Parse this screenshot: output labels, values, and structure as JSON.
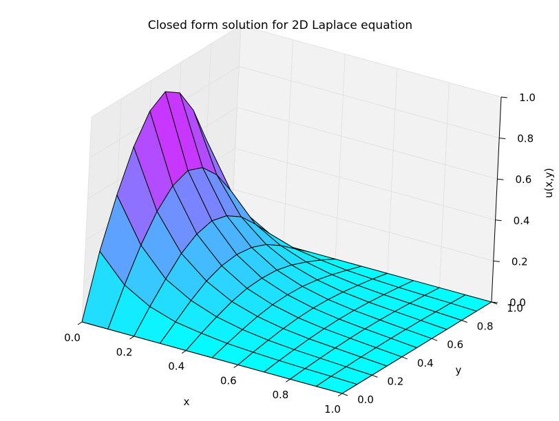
{
  "chart_data": {
    "type": "surface",
    "title": "Closed form solution for 2D Laplace equation",
    "xlabel": "x",
    "ylabel": "y",
    "zlabel": "u(x,y)",
    "xlim": [
      0.0,
      1.0
    ],
    "ylim": [
      0.0,
      1.0
    ],
    "zlim": [
      0.0,
      1.0
    ],
    "x_ticks": [
      "0.0",
      "0.2",
      "0.4",
      "0.6",
      "0.8",
      "1.0"
    ],
    "y_ticks": [
      "0.0",
      "0.2",
      "0.4",
      "0.6",
      "0.8",
      "1.0"
    ],
    "z_ticks": [
      "0.0",
      "0.2",
      "0.4",
      "0.6",
      "0.8",
      "1.0"
    ],
    "grid": true,
    "colormap": "cool",
    "colormap_low": "#00ffff",
    "colormap_high": "#ff00ff",
    "x": [
      0.0,
      0.1,
      0.2,
      0.3,
      0.4,
      0.5,
      0.6,
      0.7,
      0.8,
      0.9,
      1.0
    ],
    "y": [
      0.0,
      0.1,
      0.2,
      0.3,
      0.4,
      0.5,
      0.6,
      0.7,
      0.8,
      0.9,
      1.0
    ],
    "z_rows_by_y": [
      [
        0.0,
        0.0,
        0.0,
        0.0,
        0.0,
        0.0,
        0.0,
        0.0,
        0.0,
        0.0,
        0.0
      ],
      [
        0.3,
        0.17,
        0.1,
        0.06,
        0.04,
        0.025,
        0.017,
        0.011,
        0.007,
        0.004,
        0.0
      ],
      [
        0.53,
        0.32,
        0.19,
        0.12,
        0.075,
        0.048,
        0.031,
        0.02,
        0.013,
        0.006,
        0.0
      ],
      [
        0.72,
        0.44,
        0.27,
        0.17,
        0.105,
        0.067,
        0.043,
        0.028,
        0.018,
        0.009,
        0.0
      ],
      [
        0.85,
        0.52,
        0.32,
        0.2,
        0.125,
        0.08,
        0.051,
        0.033,
        0.021,
        0.01,
        0.0
      ],
      [
        0.9,
        0.55,
        0.34,
        0.21,
        0.13,
        0.084,
        0.054,
        0.035,
        0.022,
        0.011,
        0.0
      ],
      [
        0.85,
        0.52,
        0.32,
        0.2,
        0.125,
        0.08,
        0.051,
        0.033,
        0.021,
        0.01,
        0.0
      ],
      [
        0.72,
        0.44,
        0.27,
        0.17,
        0.105,
        0.067,
        0.043,
        0.028,
        0.018,
        0.009,
        0.0
      ],
      [
        0.53,
        0.32,
        0.19,
        0.12,
        0.075,
        0.048,
        0.031,
        0.02,
        0.013,
        0.006,
        0.0
      ],
      [
        0.3,
        0.17,
        0.1,
        0.06,
        0.04,
        0.025,
        0.017,
        0.011,
        0.007,
        0.004,
        0.0
      ],
      [
        0.0,
        0.0,
        0.0,
        0.0,
        0.0,
        0.0,
        0.0,
        0.0,
        0.0,
        0.0,
        0.0
      ]
    ]
  }
}
